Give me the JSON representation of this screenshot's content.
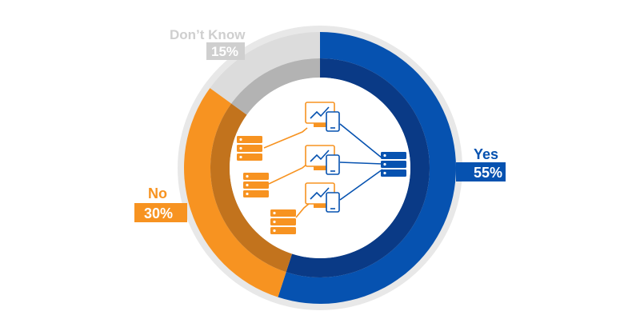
{
  "chart_data": {
    "type": "pie",
    "categories": [
      "Yes",
      "No",
      "Don’t Know"
    ],
    "values": [
      55,
      30,
      15
    ],
    "value_labels": [
      "55%",
      "30%",
      "15%"
    ],
    "unit": "%",
    "colors": {
      "Yes": "#0652b0",
      "No": "#f79321",
      "Don’t Know": "#dcdcdc"
    },
    "inner_colors": {
      "Yes": "#0a3a86",
      "No": "#c2731d",
      "Don’t Know": "#b3b3b3"
    },
    "label_box_colors": {
      "Yes": "#0652b0",
      "No": "#f79321",
      "Don’t Know": "#cfcfcf"
    },
    "outer_ring_color": "#e8e8e8",
    "start_angle_deg": 0,
    "direction": "clockwise"
  },
  "center_illustration": {
    "description_icons": [
      "monitor-chart-icon",
      "tablet-icon",
      "server-stack-icon"
    ],
    "primary_color": "#f79321",
    "secondary_color": "#0652b0"
  }
}
